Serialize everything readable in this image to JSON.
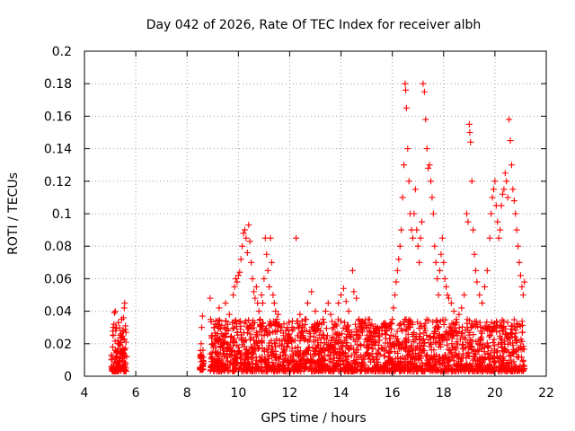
{
  "chart_data": {
    "type": "scatter",
    "title": "Day 042 of 2026, Rate Of TEC Index for receiver albh",
    "xlabel": "GPS time / hours",
    "ylabel": "ROTI / TECUs",
    "xlim": [
      4,
      22
    ],
    "ylim": [
      0,
      0.2
    ],
    "x_ticks": [
      "4",
      "6",
      "8",
      "10",
      "12",
      "14",
      "16",
      "18",
      "20",
      "22"
    ],
    "y_ticks": [
      "0",
      "0.02",
      "0.04",
      "0.06",
      "0.08",
      "0.1",
      "0.12",
      "0.14",
      "0.16",
      "0.18",
      "0.2"
    ],
    "grid": true,
    "marker": "plus",
    "color": "#ff0000",
    "series": [
      {
        "points": [
          [
            5.05,
            0.006
          ],
          [
            5.08,
            0.012
          ],
          [
            5.1,
            0.018
          ],
          [
            5.12,
            0.025
          ],
          [
            5.15,
            0.032
          ],
          [
            5.17,
            0.039
          ],
          [
            5.2,
            0.04
          ],
          [
            5.22,
            0.028
          ],
          [
            5.25,
            0.015
          ],
          [
            5.27,
            0.009
          ],
          [
            5.3,
            0.022
          ],
          [
            5.32,
            0.033
          ],
          [
            5.35,
            0.011
          ],
          [
            5.38,
            0.007
          ],
          [
            5.4,
            0.019
          ],
          [
            5.42,
            0.026
          ],
          [
            5.45,
            0.005
          ],
          [
            5.48,
            0.014
          ],
          [
            5.5,
            0.028
          ],
          [
            5.52,
            0.036
          ],
          [
            5.55,
            0.042
          ],
          [
            5.57,
            0.045
          ],
          [
            5.6,
            0.031
          ],
          [
            5.62,
            0.021
          ],
          [
            5.64,
            0.012
          ],
          [
            5.3,
            0.005
          ],
          [
            5.2,
            0.016
          ],
          [
            5.45,
            0.035
          ],
          [
            5.58,
            0.008
          ],
          [
            5.12,
            0.03
          ],
          [
            8.5,
            0.005
          ],
          [
            8.52,
            0.012
          ],
          [
            8.55,
            0.02
          ],
          [
            8.57,
            0.03
          ],
          [
            8.6,
            0.037
          ],
          [
            8.62,
            0.016
          ],
          [
            8.64,
            0.008
          ],
          [
            8.9,
            0.048
          ],
          [
            8.92,
            0.035
          ],
          [
            8.95,
            0.025
          ],
          [
            8.97,
            0.012
          ],
          [
            9.0,
            0.02
          ],
          [
            9.05,
            0.03
          ],
          [
            9.1,
            0.015
          ],
          [
            9.15,
            0.022
          ],
          [
            9.2,
            0.034
          ],
          [
            9.25,
            0.042
          ],
          [
            9.3,
            0.018
          ],
          [
            9.35,
            0.026
          ],
          [
            9.4,
            0.014
          ],
          [
            9.45,
            0.03
          ],
          [
            9.5,
            0.045
          ],
          [
            9.55,
            0.02
          ],
          [
            9.6,
            0.028
          ],
          [
            9.65,
            0.038
          ],
          [
            9.7,
            0.024
          ],
          [
            9.75,
            0.016
          ],
          [
            9.8,
            0.05
          ],
          [
            9.85,
            0.055
          ],
          [
            9.9,
            0.06
          ],
          [
            9.95,
            0.058
          ],
          [
            10.0,
            0.062
          ],
          [
            10.05,
            0.064
          ],
          [
            10.1,
            0.072
          ],
          [
            10.15,
            0.08
          ],
          [
            10.2,
            0.088
          ],
          [
            10.25,
            0.09
          ],
          [
            10.3,
            0.085
          ],
          [
            10.35,
            0.076
          ],
          [
            10.4,
            0.093
          ],
          [
            10.45,
            0.083
          ],
          [
            10.5,
            0.07
          ],
          [
            10.55,
            0.06
          ],
          [
            10.6,
            0.052
          ],
          [
            10.65,
            0.048
          ],
          [
            10.7,
            0.055
          ],
          [
            10.75,
            0.045
          ],
          [
            10.8,
            0.04
          ],
          [
            10.85,
            0.035
          ],
          [
            10.9,
            0.05
          ],
          [
            10.95,
            0.045
          ],
          [
            11.0,
            0.06
          ],
          [
            11.05,
            0.085
          ],
          [
            11.1,
            0.075
          ],
          [
            11.15,
            0.065
          ],
          [
            11.2,
            0.055
          ],
          [
            11.25,
            0.085
          ],
          [
            11.3,
            0.07
          ],
          [
            11.35,
            0.05
          ],
          [
            11.4,
            0.045
          ],
          [
            11.45,
            0.04
          ],
          [
            11.5,
            0.035
          ],
          [
            11.55,
            0.038
          ],
          [
            11.6,
            0.032
          ],
          [
            11.65,
            0.028
          ],
          [
            11.7,
            0.03
          ],
          [
            11.75,
            0.025
          ],
          [
            11.8,
            0.022
          ],
          [
            11.85,
            0.028
          ],
          [
            11.9,
            0.03
          ],
          [
            11.95,
            0.026
          ],
          [
            12.0,
            0.024
          ],
          [
            12.25,
            0.085
          ],
          [
            12.4,
            0.038
          ],
          [
            12.5,
            0.03
          ],
          [
            12.6,
            0.035
          ],
          [
            12.7,
            0.045
          ],
          [
            12.85,
            0.052
          ],
          [
            13.0,
            0.04
          ],
          [
            13.1,
            0.032
          ],
          [
            13.2,
            0.028
          ],
          [
            13.3,
            0.035
          ],
          [
            13.4,
            0.04
          ],
          [
            13.5,
            0.045
          ],
          [
            13.6,
            0.038
          ],
          [
            13.7,
            0.03
          ],
          [
            13.8,
            0.032
          ],
          [
            13.9,
            0.045
          ],
          [
            14.0,
            0.05
          ],
          [
            14.1,
            0.054
          ],
          [
            14.2,
            0.046
          ],
          [
            14.3,
            0.04
          ],
          [
            14.45,
            0.065
          ],
          [
            14.5,
            0.052
          ],
          [
            14.6,
            0.048
          ],
          [
            14.7,
            0.035
          ],
          [
            14.8,
            0.03
          ],
          [
            14.9,
            0.033
          ],
          [
            15.0,
            0.03
          ],
          [
            15.1,
            0.028
          ],
          [
            15.2,
            0.032
          ],
          [
            15.3,
            0.027
          ],
          [
            15.4,
            0.029
          ],
          [
            15.5,
            0.025
          ],
          [
            15.6,
            0.026
          ],
          [
            15.7,
            0.028
          ],
          [
            15.8,
            0.03
          ],
          [
            15.9,
            0.032
          ],
          [
            16.0,
            0.035
          ],
          [
            16.05,
            0.042
          ],
          [
            16.1,
            0.05
          ],
          [
            16.15,
            0.058
          ],
          [
            16.2,
            0.065
          ],
          [
            16.25,
            0.072
          ],
          [
            16.3,
            0.08
          ],
          [
            16.35,
            0.09
          ],
          [
            16.4,
            0.11
          ],
          [
            16.45,
            0.13
          ],
          [
            16.5,
            0.18
          ],
          [
            16.52,
            0.176
          ],
          [
            16.55,
            0.165
          ],
          [
            16.6,
            0.14
          ],
          [
            16.65,
            0.12
          ],
          [
            16.7,
            0.1
          ],
          [
            16.75,
            0.09
          ],
          [
            16.8,
            0.085
          ],
          [
            16.85,
            0.1
          ],
          [
            16.9,
            0.115
          ],
          [
            16.95,
            0.09
          ],
          [
            17.0,
            0.08
          ],
          [
            17.05,
            0.07
          ],
          [
            17.1,
            0.085
          ],
          [
            17.15,
            0.095
          ],
          [
            17.2,
            0.18
          ],
          [
            17.25,
            0.175
          ],
          [
            17.3,
            0.158
          ],
          [
            17.35,
            0.14
          ],
          [
            17.4,
            0.128
          ],
          [
            17.45,
            0.13
          ],
          [
            17.5,
            0.12
          ],
          [
            17.55,
            0.11
          ],
          [
            17.6,
            0.1
          ],
          [
            17.65,
            0.08
          ],
          [
            17.7,
            0.07
          ],
          [
            17.75,
            0.06
          ],
          [
            17.8,
            0.05
          ],
          [
            17.85,
            0.065
          ],
          [
            17.9,
            0.075
          ],
          [
            17.95,
            0.085
          ],
          [
            18.0,
            0.07
          ],
          [
            18.05,
            0.06
          ],
          [
            18.1,
            0.055
          ],
          [
            18.15,
            0.05
          ],
          [
            18.2,
            0.048
          ],
          [
            18.3,
            0.045
          ],
          [
            18.4,
            0.04
          ],
          [
            18.5,
            0.035
          ],
          [
            18.6,
            0.038
          ],
          [
            18.7,
            0.042
          ],
          [
            18.8,
            0.05
          ],
          [
            18.9,
            0.1
          ],
          [
            18.95,
            0.095
          ],
          [
            19.0,
            0.155
          ],
          [
            19.02,
            0.15
          ],
          [
            19.05,
            0.144
          ],
          [
            19.1,
            0.12
          ],
          [
            19.15,
            0.09
          ],
          [
            19.2,
            0.075
          ],
          [
            19.25,
            0.065
          ],
          [
            19.3,
            0.058
          ],
          [
            19.4,
            0.05
          ],
          [
            19.5,
            0.045
          ],
          [
            19.6,
            0.055
          ],
          [
            19.7,
            0.065
          ],
          [
            19.8,
            0.085
          ],
          [
            19.85,
            0.1
          ],
          [
            19.9,
            0.11
          ],
          [
            19.95,
            0.115
          ],
          [
            20.0,
            0.12
          ],
          [
            20.05,
            0.105
          ],
          [
            20.1,
            0.095
          ],
          [
            20.15,
            0.085
          ],
          [
            20.2,
            0.09
          ],
          [
            20.25,
            0.105
          ],
          [
            20.3,
            0.112
          ],
          [
            20.35,
            0.115
          ],
          [
            20.4,
            0.125
          ],
          [
            20.45,
            0.12
          ],
          [
            20.5,
            0.11
          ],
          [
            20.55,
            0.158
          ],
          [
            20.6,
            0.145
          ],
          [
            20.65,
            0.13
          ],
          [
            20.7,
            0.115
          ],
          [
            20.75,
            0.108
          ],
          [
            20.8,
            0.1
          ],
          [
            20.85,
            0.09
          ],
          [
            20.9,
            0.08
          ],
          [
            20.95,
            0.07
          ],
          [
            21.0,
            0.062
          ],
          [
            21.05,
            0.055
          ],
          [
            21.1,
            0.05
          ],
          [
            21.15,
            0.058
          ]
        ]
      }
    ]
  }
}
